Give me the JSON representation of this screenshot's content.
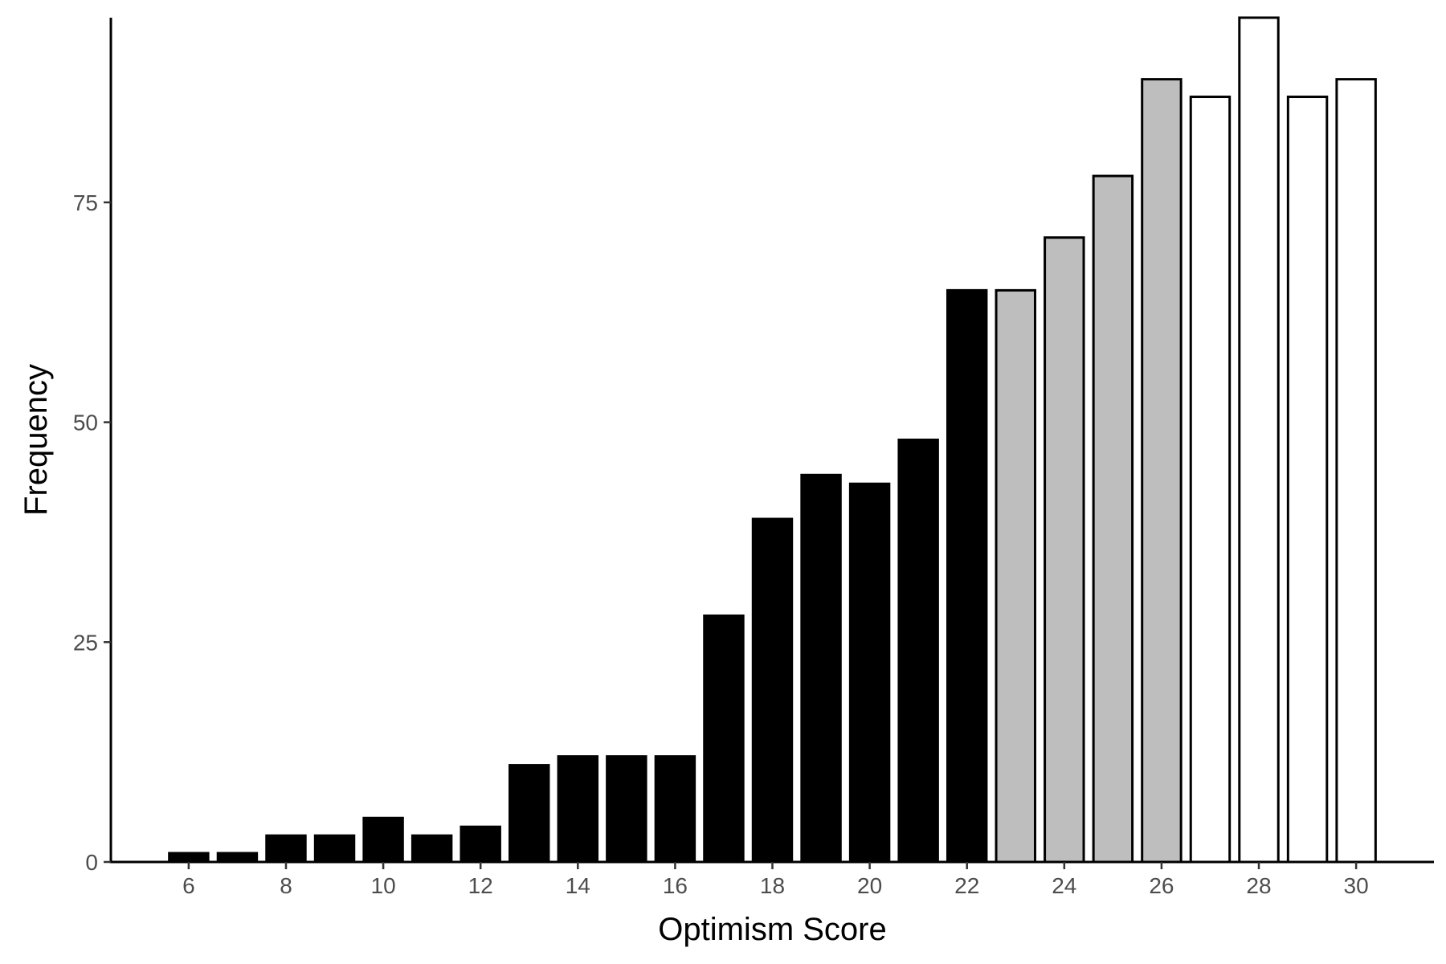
{
  "chart_data": {
    "type": "bar",
    "title": "",
    "xlabel": "Optimism Score",
    "ylabel": "Frequency",
    "xlim": [
      4.4,
      31.6
    ],
    "ylim": [
      0,
      96
    ],
    "x_ticks": [
      6,
      8,
      10,
      12,
      14,
      16,
      18,
      20,
      22,
      24,
      26,
      28,
      30
    ],
    "y_ticks": [
      0,
      25,
      50,
      75
    ],
    "grid": false,
    "legend": "none",
    "outline_color": "#000000",
    "bars": [
      {
        "x": 6,
        "value": 1,
        "fill": "#000000"
      },
      {
        "x": 7,
        "value": 1,
        "fill": "#000000"
      },
      {
        "x": 8,
        "value": 3,
        "fill": "#000000"
      },
      {
        "x": 9,
        "value": 3,
        "fill": "#000000"
      },
      {
        "x": 10,
        "value": 5,
        "fill": "#000000"
      },
      {
        "x": 11,
        "value": 3,
        "fill": "#000000"
      },
      {
        "x": 12,
        "value": 4,
        "fill": "#000000"
      },
      {
        "x": 13,
        "value": 11,
        "fill": "#000000"
      },
      {
        "x": 14,
        "value": 12,
        "fill": "#000000"
      },
      {
        "x": 15,
        "value": 12,
        "fill": "#000000"
      },
      {
        "x": 16,
        "value": 12,
        "fill": "#000000"
      },
      {
        "x": 17,
        "value": 28,
        "fill": "#000000"
      },
      {
        "x": 18,
        "value": 39,
        "fill": "#000000"
      },
      {
        "x": 19,
        "value": 44,
        "fill": "#000000"
      },
      {
        "x": 20,
        "value": 43,
        "fill": "#000000"
      },
      {
        "x": 21,
        "value": 48,
        "fill": "#000000"
      },
      {
        "x": 22,
        "value": 65,
        "fill": "#000000"
      },
      {
        "x": 23,
        "value": 65,
        "fill": "#bebebe"
      },
      {
        "x": 24,
        "value": 71,
        "fill": "#bebebe"
      },
      {
        "x": 25,
        "value": 78,
        "fill": "#bebebe"
      },
      {
        "x": 26,
        "value": 89,
        "fill": "#bebebe"
      },
      {
        "x": 27,
        "value": 87,
        "fill": "#ffffff"
      },
      {
        "x": 28,
        "value": 96,
        "fill": "#ffffff"
      },
      {
        "x": 29,
        "value": 87,
        "fill": "#ffffff"
      },
      {
        "x": 30,
        "value": 89,
        "fill": "#ffffff"
      }
    ]
  }
}
